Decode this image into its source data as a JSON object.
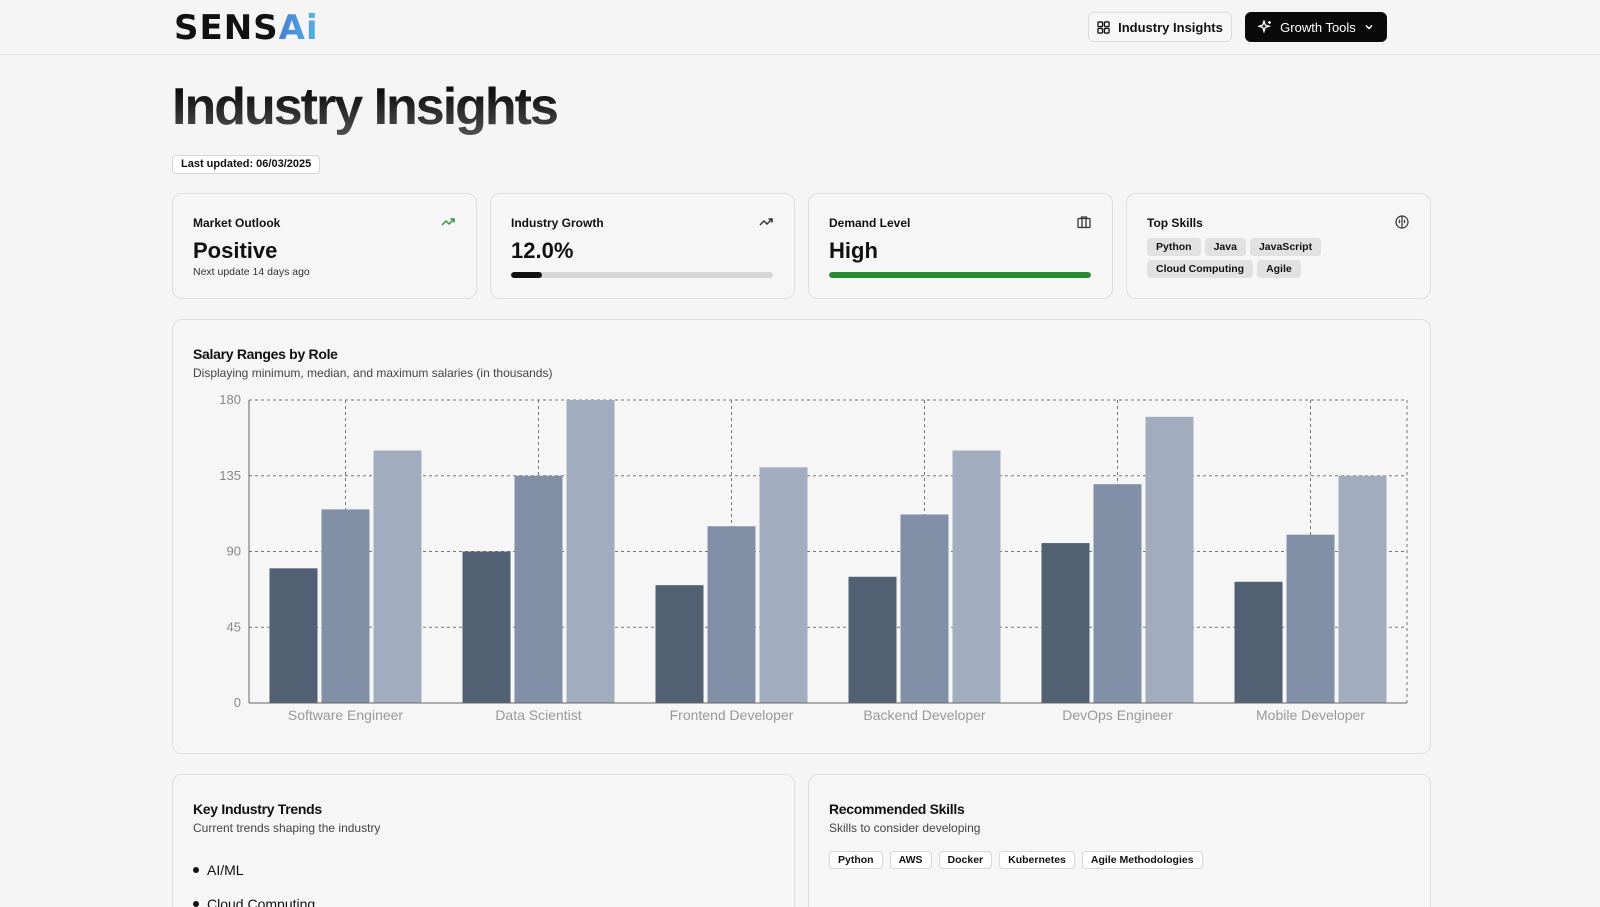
{
  "header": {
    "logo_main": "SENS",
    "logo_accent": "Ai",
    "insights_button": "Industry Insights",
    "growth_button": "Growth Tools",
    "insights_icon": "grid-icon",
    "growth_icon": "sparkles-icon",
    "growth_chevron": "chevron-down-icon"
  },
  "page": {
    "title": "Industry Insights",
    "last_updated": "Last updated: 06/03/2025"
  },
  "stats": {
    "market_outlook": {
      "label": "Market Outlook",
      "value": "Positive",
      "sub": "Next update 14 days ago",
      "icon": "trending-up-icon",
      "icon_color": "#2e9a3e"
    },
    "industry_growth": {
      "label": "Industry Growth",
      "value": "12.0%",
      "progress": 0.12,
      "icon": "trending-up-icon",
      "bar_color": "#111111"
    },
    "demand_level": {
      "label": "Demand Level",
      "value": "High",
      "progress": 1.0,
      "icon": "briefcase-icon",
      "bar_color": "#2a8a34"
    },
    "top_skills": {
      "label": "Top Skills",
      "icon": "brain-icon",
      "skills": [
        "Python",
        "Java",
        "JavaScript",
        "Cloud Computing",
        "Agile"
      ]
    }
  },
  "salary": {
    "title": "Salary Ranges by Role",
    "description": "Displaying minimum, median, and maximum salaries (in thousands)"
  },
  "chart_data": {
    "type": "bar",
    "categories": [
      "Software Engineer",
      "Data Scientist",
      "Frontend Developer",
      "Backend Developer",
      "DevOps Engineer",
      "Mobile Developer"
    ],
    "series": [
      {
        "values": [
          80,
          90,
          70,
          75,
          95,
          72
        ],
        "color": "#526074"
      },
      {
        "values": [
          115,
          135,
          105,
          112,
          130,
          100
        ],
        "color": "#8190a7"
      },
      {
        "values": [
          150,
          180,
          140,
          150,
          170,
          135
        ],
        "color": "#a1acbf"
      }
    ],
    "yticks": [
      0,
      45,
      90,
      135,
      180
    ],
    "ylim": [
      0,
      180
    ],
    "grid": true
  },
  "trends": {
    "title": "Key Industry Trends",
    "description": "Current trends shaping the industry",
    "items": [
      "AI/ML",
      "Cloud Computing"
    ]
  },
  "recommended": {
    "title": "Recommended Skills",
    "description": "Skills to consider developing",
    "skills": [
      "Python",
      "AWS",
      "Docker",
      "Kubernetes",
      "Agile Methodologies"
    ]
  }
}
